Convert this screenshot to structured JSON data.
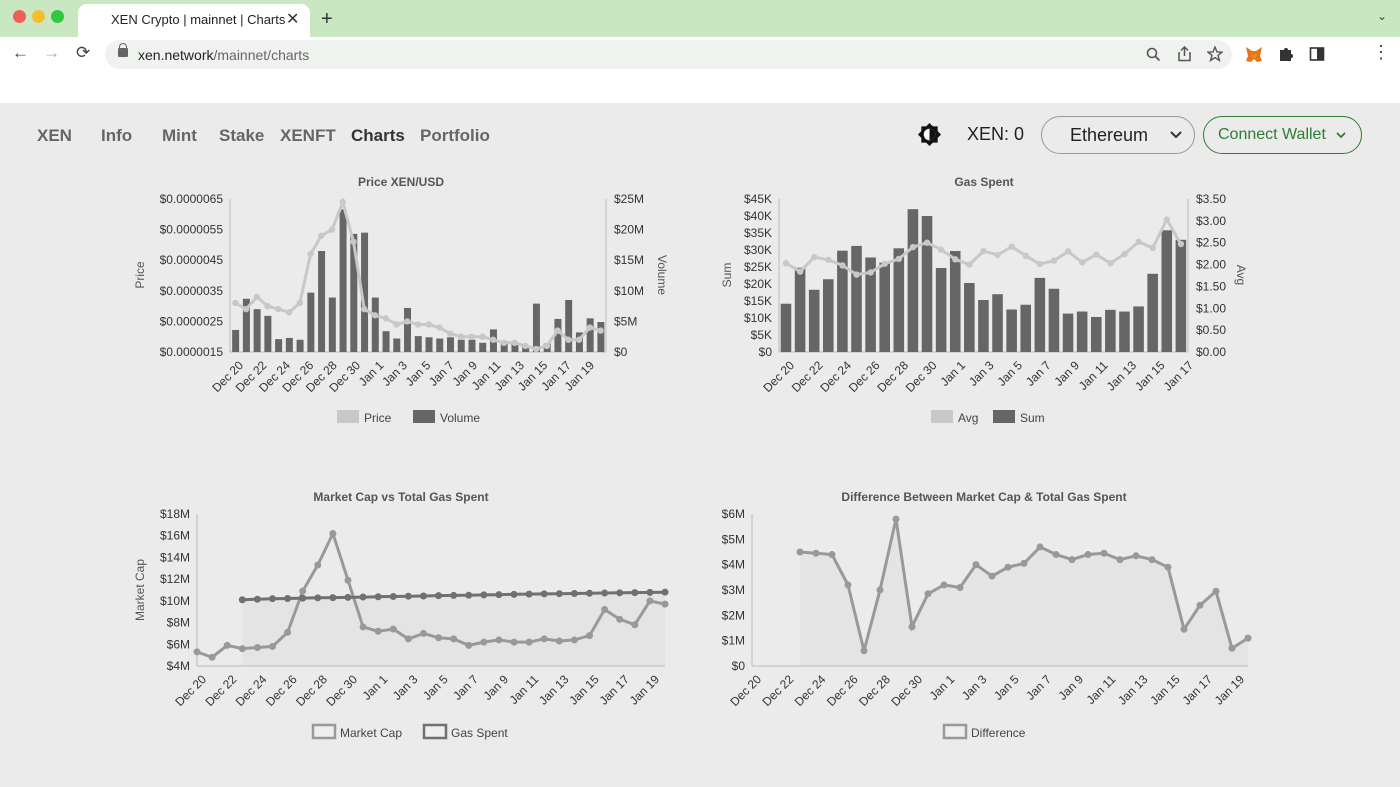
{
  "browser": {
    "tab_title": "XEN Crypto | mainnet | Charts",
    "url_domain": "xen.network",
    "url_path": "/mainnet/charts",
    "tab_close": "✕",
    "new_tab": "+",
    "tab_menu": "⌄",
    "back": "←",
    "forward": "→",
    "reload": "⟳",
    "kebab": "⋮"
  },
  "nav": {
    "items": [
      {
        "label": "XEN"
      },
      {
        "label": "Info"
      },
      {
        "label": "Mint"
      },
      {
        "label": "Stake"
      },
      {
        "label": "XENFT"
      },
      {
        "label": "Charts",
        "active": true
      },
      {
        "label": "Portfolio"
      }
    ],
    "balance": "XEN: 0",
    "chain": "Ethereum",
    "connect": "Connect Wallet",
    "chevron": "⌄"
  },
  "colors": {
    "bar": "#666666",
    "line_light": "#c8c8c8",
    "line_dark": "#999999",
    "line_darker": "#707070",
    "area": "#e4e4e4",
    "accent_green": "#2e7d32",
    "tab_bar": "#c9e8c1"
  },
  "chart_data": [
    {
      "type": "bar",
      "title": "Price XEN/USD",
      "ylabel": "Price",
      "y2label": "Volume",
      "ylim": [
        1.5e-06,
        6.5e-06
      ],
      "y2lim": [
        0,
        25000000
      ],
      "y_ticks": [
        "$0.0000065",
        "$0.0000055",
        "$0.0000045",
        "$0.0000035",
        "$0.0000025",
        "$0.0000015"
      ],
      "y2_ticks": [
        "$25M",
        "$20M",
        "$15M",
        "$10M",
        "$5M",
        "$0"
      ],
      "x_ticks": [
        "Dec 20",
        "Dec 22",
        "Dec 24",
        "Dec 26",
        "Dec 28",
        "Dec 30",
        "Jan 1",
        "Jan 3",
        "Jan 5",
        "Jan 7",
        "Jan 9",
        "Jan 11",
        "Jan 13",
        "Jan 15",
        "Jan 17",
        "Jan 19"
      ],
      "legend": [
        "Price",
        "Volume"
      ],
      "series": [
        {
          "name": "Volume",
          "type": "bar",
          "axis": "right",
          "values": [
            3.6,
            8.7,
            7.0,
            5.9,
            2.1,
            2.3,
            2.0,
            9.7,
            16.5,
            8.9,
            23.3,
            19.3,
            19.5,
            8.9,
            3.4,
            2.2,
            7.2,
            2.6,
            2.4,
            2.2,
            2.4,
            2.0,
            2.0,
            1.5,
            3.7,
            1.8,
            1.4,
            1.0,
            7.9,
            1.4,
            5.4,
            8.5,
            3.2,
            5.5,
            4.9
          ]
        },
        {
          "name": "Price",
          "type": "line",
          "axis": "left",
          "values": [
            3.1e-06,
            2.9e-06,
            3.3e-06,
            3e-06,
            2.9e-06,
            2.8e-06,
            3.1e-06,
            4.7e-06,
            5.3e-06,
            5.5e-06,
            6.4e-06,
            5.1e-06,
            2.9e-06,
            2.7e-06,
            2.6e-06,
            2.4e-06,
            2.5e-06,
            2.4e-06,
            2.4e-06,
            2.3e-06,
            2.1e-06,
            2e-06,
            2e-06,
            2e-06,
            1.9e-06,
            1.8e-06,
            1.8e-06,
            1.7e-06,
            1.6e-06,
            1.7e-06,
            2.2e-06,
            1.9e-06,
            1.9e-06,
            2.3e-06,
            2.2e-06
          ]
        }
      ]
    },
    {
      "type": "bar",
      "title": "Gas Spent",
      "ylabel": "Sum",
      "y2label": "Avg",
      "ylim": [
        0,
        45000
      ],
      "y2lim": [
        0,
        3.5
      ],
      "y_ticks": [
        "$45K",
        "$40K",
        "$35K",
        "$30K",
        "$25K",
        "$20K",
        "$15K",
        "$10K",
        "$5K",
        "$0"
      ],
      "y2_ticks": [
        "$3.50",
        "$3.00",
        "$2.50",
        "$2.00",
        "$1.50",
        "$1.00",
        "$0.50",
        "$0.00"
      ],
      "x_ticks": [
        "Dec 20",
        "Dec 22",
        "Dec 24",
        "Dec 26",
        "Dec 28",
        "Dec 30",
        "Jan 1",
        "Jan 3",
        "Jan 5",
        "Jan 7",
        "Jan 9",
        "Jan 11",
        "Jan 13",
        "Jan 15",
        "Jan 17"
      ],
      "legend": [
        "Avg",
        "Sum"
      ],
      "series": [
        {
          "name": "Sum",
          "type": "bar",
          "axis": "left",
          "values": [
            14200,
            24800,
            18300,
            21400,
            29800,
            31200,
            27800,
            26300,
            30500,
            42000,
            40000,
            24700,
            29700,
            20300,
            15300,
            17000,
            12500,
            13900,
            21800,
            18600,
            11300,
            11900,
            10300,
            12400,
            11900,
            13400,
            23000,
            35800,
            33000
          ]
        },
        {
          "name": "Avg",
          "type": "line",
          "axis": "right",
          "values": [
            2.03,
            1.84,
            2.17,
            2.11,
            1.98,
            1.77,
            1.82,
            2.02,
            2.13,
            2.4,
            2.5,
            2.34,
            2.12,
            2.0,
            2.31,
            2.22,
            2.41,
            2.2,
            2.01,
            2.09,
            2.3,
            2.05,
            2.23,
            2.03,
            2.24,
            2.52,
            2.38,
            3.03,
            2.47
          ]
        }
      ]
    },
    {
      "type": "line",
      "title": "Market Cap vs Total Gas Spent",
      "ylabel": "Market Cap",
      "ylim": [
        4,
        18
      ],
      "y_ticks": [
        "$18M",
        "$16M",
        "$14M",
        "$12M",
        "$10M",
        "$8M",
        "$6M",
        "$4M"
      ],
      "x_ticks": [
        "Dec 20",
        "Dec 22",
        "Dec 24",
        "Dec 26",
        "Dec 28",
        "Dec 30",
        "Jan 1",
        "Jan 3",
        "Jan 5",
        "Jan 7",
        "Jan 9",
        "Jan 11",
        "Jan 13",
        "Jan 15",
        "Jan 17",
        "Jan 19"
      ],
      "legend": [
        "Market Cap",
        "Gas Spent"
      ],
      "series": [
        {
          "name": "Market Cap",
          "values": [
            5.3,
            4.8,
            5.9,
            5.6,
            5.7,
            5.8,
            7.1,
            10.9,
            13.3,
            16.2,
            11.9,
            7.6,
            7.2,
            7.4,
            6.5,
            7.0,
            6.6,
            6.5,
            5.9,
            6.2,
            6.4,
            6.2,
            6.2,
            6.5,
            6.3,
            6.4,
            6.8,
            9.2,
            8.3,
            7.8,
            10.0,
            9.7
          ]
        },
        {
          "name": "Gas Spent",
          "start_index": 3,
          "values": [
            10.1,
            10.15,
            10.2,
            10.22,
            10.25,
            10.28,
            10.3,
            10.32,
            10.35,
            10.38,
            10.4,
            10.43,
            10.45,
            10.48,
            10.5,
            10.52,
            10.55,
            10.57,
            10.6,
            10.62,
            10.64,
            10.66,
            10.68,
            10.7,
            10.72,
            10.74,
            10.76,
            10.78,
            10.8
          ]
        }
      ]
    },
    {
      "type": "line",
      "title": "Difference Between Market Cap & Total Gas Spent",
      "ylim": [
        0,
        6
      ],
      "y_ticks": [
        "$6M",
        "$5M",
        "$4M",
        "$3M",
        "$2M",
        "$1M",
        "$0"
      ],
      "x_ticks": [
        "Dec 20",
        "Dec 22",
        "Dec 24",
        "Dec 26",
        "Dec 28",
        "Dec 30",
        "Jan 1",
        "Jan 3",
        "Jan 5",
        "Jan 7",
        "Jan 9",
        "Jan 11",
        "Jan 13",
        "Jan 15",
        "Jan 17",
        "Jan 19"
      ],
      "legend": [
        "Difference"
      ],
      "series": [
        {
          "name": "Difference",
          "start_index": 3,
          "values": [
            4.5,
            4.45,
            4.4,
            3.2,
            0.6,
            3.0,
            5.8,
            1.55,
            2.85,
            3.2,
            3.1,
            4.0,
            3.55,
            3.9,
            4.05,
            4.7,
            4.4,
            4.2,
            4.4,
            4.45,
            4.2,
            4.35,
            4.2,
            3.9,
            1.45,
            2.4,
            2.95,
            0.7,
            1.1
          ]
        }
      ]
    }
  ]
}
